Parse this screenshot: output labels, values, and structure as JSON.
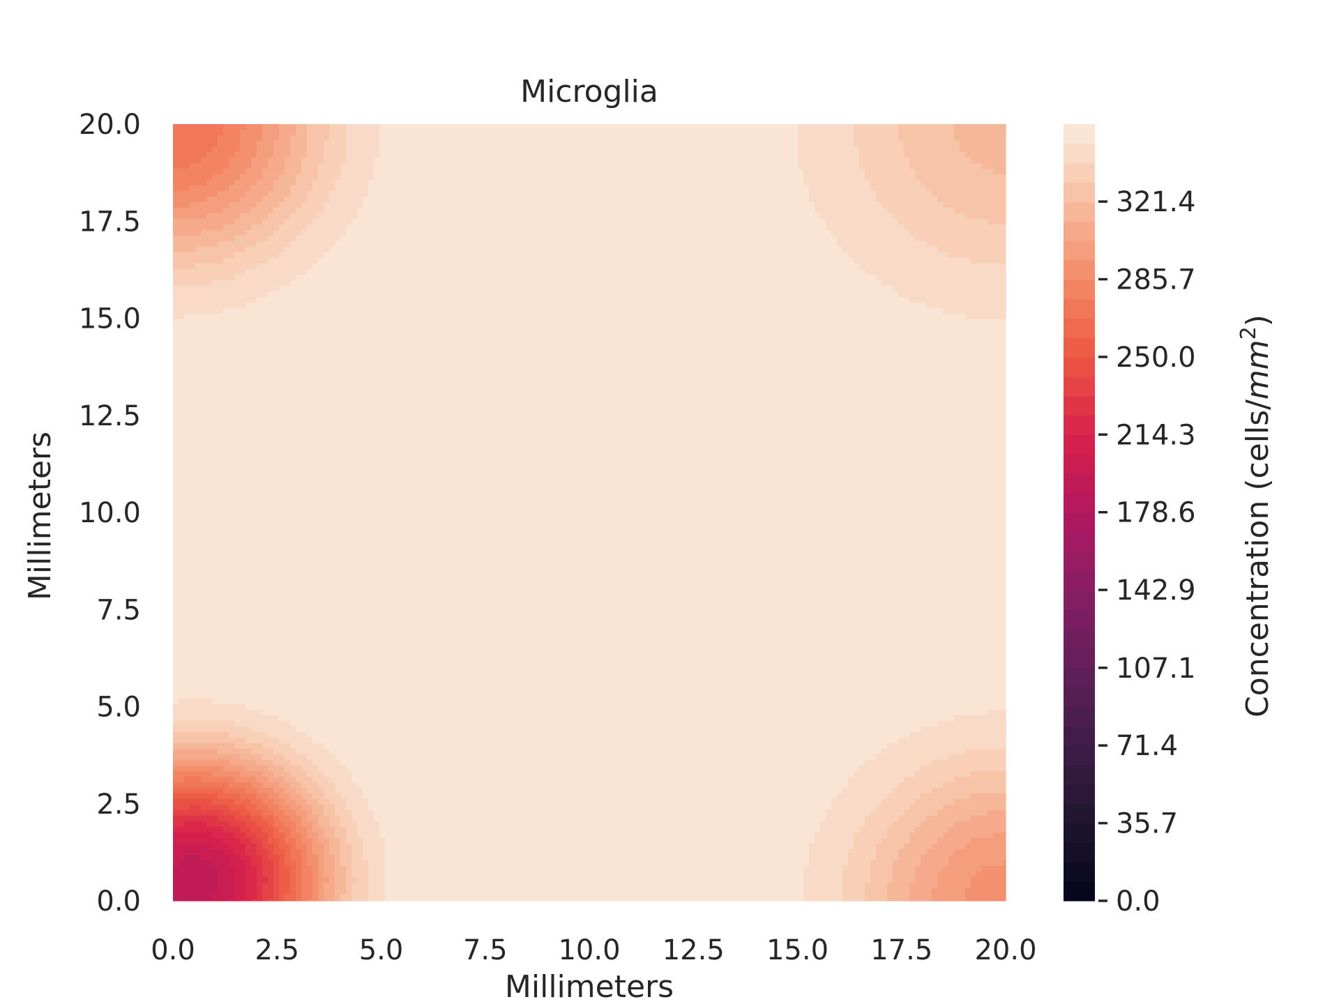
{
  "chart_data": {
    "type": "contour",
    "title": "Microglia",
    "xlabel": "Millimeters",
    "ylabel": "Millimeters",
    "colorbar_label": "Concentration (cells/mm²)",
    "colorbar_label_main": "Concentration (cells/",
    "colorbar_label_unit": "mm",
    "colorbar_label_exp": "2",
    "colorbar_label_close": ")",
    "xlim": [
      0,
      20
    ],
    "ylim": [
      0,
      20
    ],
    "x_ticks": [
      "0.0",
      "2.5",
      "5.0",
      "7.5",
      "10.0",
      "12.5",
      "15.0",
      "17.5",
      "20.0"
    ],
    "y_ticks": [
      "0.0",
      "2.5",
      "5.0",
      "7.5",
      "10.0",
      "12.5",
      "15.0",
      "17.5",
      "20.0"
    ],
    "colorbar_range": [
      0,
      357
    ],
    "colorbar_ticks": [
      "0.0",
      "35.7",
      "71.4",
      "107.1",
      "142.9",
      "178.6",
      "214.3",
      "250.0",
      "285.7",
      "321.4"
    ],
    "colorbar_levels": 40,
    "colormap": "rocket",
    "field_model": {
      "baseline": 350,
      "wells": [
        {
          "x": 0.5,
          "y": 0.5,
          "min_value": 190,
          "radius_mm": 5.0
        },
        {
          "x": 0,
          "y": 20,
          "min_value": 268,
          "radius_mm": 5.5
        },
        {
          "x": 20,
          "y": 0,
          "min_value": 290,
          "radius_mm": 5.5
        },
        {
          "x": 20,
          "y": 20,
          "min_value": 318,
          "radius_mm": 6.0
        }
      ]
    },
    "grid": false
  }
}
